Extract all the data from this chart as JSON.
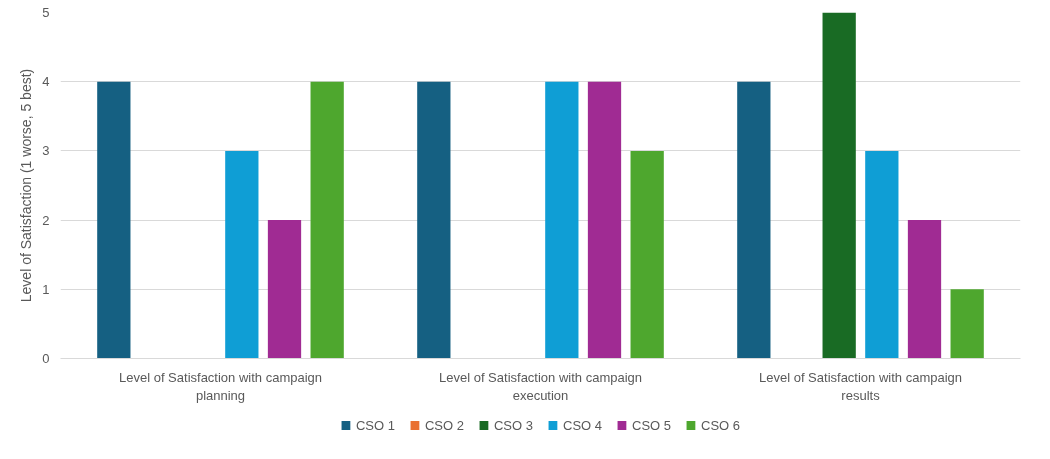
{
  "chart_data": {
    "type": "bar",
    "ylabel": "Level of Satisfaction (1 worse, 5 best)",
    "categories": [
      "Level of Satisfaction with campaign planning",
      "Level of Satisfaction with campaign execution",
      "Level of Satisfaction with campaign results"
    ],
    "series": [
      {
        "name": "CSO 1",
        "color": "#156082",
        "values": [
          4,
          4,
          4
        ]
      },
      {
        "name": "CSO 2",
        "color": "#e97132",
        "values": [
          0,
          0,
          0
        ]
      },
      {
        "name": "CSO 3",
        "color": "#196b24",
        "values": [
          0,
          0,
          5
        ]
      },
      {
        "name": "CSO 4",
        "color": "#0f9ed5",
        "values": [
          3,
          4,
          3
        ]
      },
      {
        "name": "CSO 5",
        "color": "#a02b93",
        "values": [
          2,
          4,
          2
        ]
      },
      {
        "name": "CSO 6",
        "color": "#4ea72e",
        "values": [
          4,
          3,
          1
        ]
      }
    ],
    "ylim": [
      0,
      5
    ],
    "yticks": [
      0,
      1,
      2,
      3,
      4,
      5
    ],
    "grid": "y",
    "legend": "bottom"
  }
}
